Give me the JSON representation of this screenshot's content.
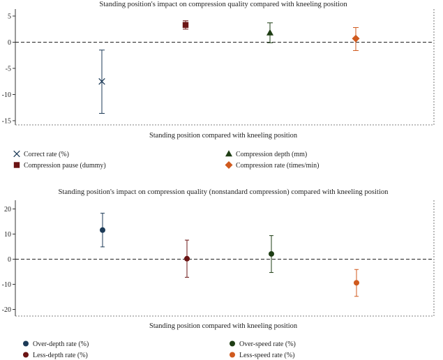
{
  "chart_data": [
    {
      "type": "scatter",
      "subtype": "error-bar",
      "title": "Standing position's impact on compression quality compared with kneeling position",
      "xlabel": "Standing position compared with kneeling position",
      "ylabel": "",
      "ylim": [
        -16,
        5.5
      ],
      "yticks": [
        5,
        0,
        -5,
        -10,
        -15
      ],
      "ytick_labels": [
        "5",
        "0",
        "-5",
        "-10",
        "-15"
      ],
      "reference_line": 0,
      "grid": false,
      "legend_position": "bottom",
      "series": [
        {
          "name": "Correct rate (%)",
          "marker": "x",
          "color": "#1c3a57",
          "estimate": -7.5,
          "ci": [
            -13.6,
            -1.5
          ]
        },
        {
          "name": "Compression pause (dummy)",
          "marker": "square",
          "color": "#6b1414",
          "estimate": 3.3,
          "ci": [
            2.5,
            4.1
          ]
        },
        {
          "name": "Compression depth (mm)",
          "marker": "triangle",
          "color": "#1e3d14",
          "estimate": 1.8,
          "ci": [
            -0.1,
            3.7
          ]
        },
        {
          "name": "Compression rate (times/min)",
          "marker": "diamond",
          "color": "#d05a1e",
          "estimate": 0.7,
          "ci": [
            -1.6,
            2.8
          ]
        }
      ]
    },
    {
      "type": "scatter",
      "subtype": "error-bar",
      "title": "Standing position's impact on compression quality (nonstandard compression) compared with kneeling position",
      "xlabel": "Standing position compared with kneeling position",
      "ylabel": "",
      "ylim": [
        -22,
        23
      ],
      "yticks": [
        20,
        10,
        0,
        -10,
        -20
      ],
      "ytick_labels": [
        "20",
        "10",
        "0",
        "-10",
        "-20"
      ],
      "reference_line": 0,
      "grid": false,
      "legend_position": "bottom",
      "series": [
        {
          "name": "Over-depth rate (%)",
          "marker": "circle",
          "color": "#1c3a57",
          "estimate": 11.6,
          "ci": [
            4.9,
            18.3
          ]
        },
        {
          "name": "Less-depth rate (%)",
          "marker": "circle",
          "color": "#6b1414",
          "estimate": 0.2,
          "ci": [
            -7.2,
            7.6
          ]
        },
        {
          "name": "Over-speed rate (%)",
          "marker": "circle",
          "color": "#1e3d14",
          "estimate": 2.1,
          "ci": [
            -5.3,
            9.4
          ]
        },
        {
          "name": "Less-speed rate (%)",
          "marker": "circle",
          "color": "#d05a1e",
          "estimate": -9.4,
          "ci": [
            -14.8,
            -4.1
          ]
        }
      ]
    }
  ]
}
